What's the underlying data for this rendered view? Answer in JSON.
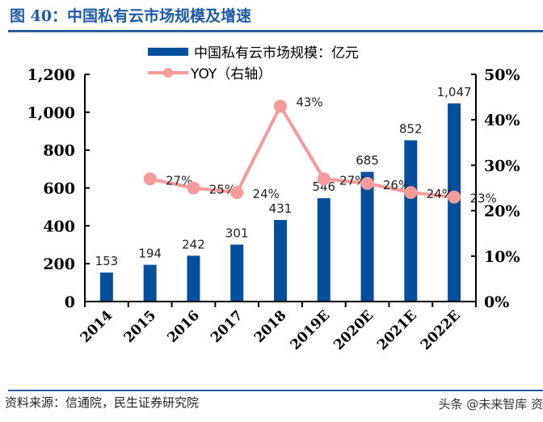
{
  "title": "图 40：中国私有云市场规模及增速",
  "source": "资料来源：信通院，民生证券研究院",
  "watermark": "头条 @未来智库 资",
  "colors": {
    "bar": "#064f9c",
    "line": "#f79a9a",
    "title": "#1f5aa6"
  },
  "chart_data": {
    "type": "bar+line",
    "categories": [
      "2014",
      "2015",
      "2016",
      "2017",
      "2018",
      "2019E",
      "2020E",
      "2021E",
      "2022E"
    ],
    "series": [
      {
        "name": "中国私有云市场规模：亿元",
        "type": "bar",
        "axis": "left",
        "values": [
          153,
          194,
          242,
          301,
          431,
          546,
          685,
          852,
          1047
        ],
        "labels": [
          "153",
          "194",
          "242",
          "301",
          "431",
          "546",
          "685",
          "852",
          "1,047"
        ]
      },
      {
        "name": "YOY（右轴）",
        "type": "line",
        "axis": "right",
        "values": [
          null,
          27,
          25,
          24,
          43,
          27,
          26,
          24,
          23
        ],
        "labels": [
          "",
          "27%",
          "25%",
          "24%",
          "43%",
          "27%",
          "26%",
          "24%",
          "23%"
        ]
      }
    ],
    "ylim": [
      0,
      1200
    ],
    "yticks": [
      "0",
      "200",
      "400",
      "600",
      "800",
      "1,000",
      "1,200"
    ],
    "y2lim": [
      0,
      50
    ],
    "y2ticks": [
      "0%",
      "10%",
      "20%",
      "30%",
      "40%",
      "50%"
    ],
    "legend": "top",
    "grid": false
  }
}
